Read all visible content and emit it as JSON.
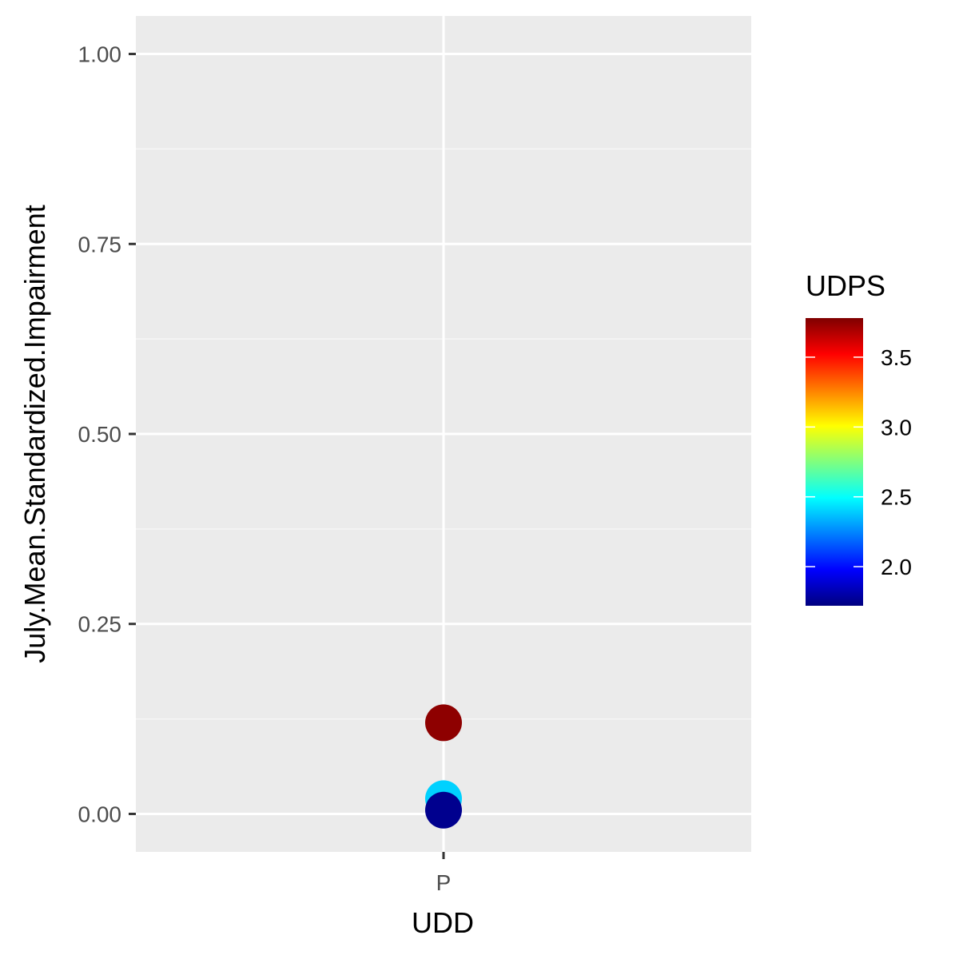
{
  "chart_data": {
    "type": "scatter",
    "title": "",
    "xlabel": "UDD",
    "ylabel": "July.Mean.Standardized.Impairment",
    "categories": [
      "P"
    ],
    "ylim": [
      -0.05,
      1.05
    ],
    "yticks": [
      {
        "value": 0.0,
        "label": "0.00"
      },
      {
        "value": 0.25,
        "label": "0.25"
      },
      {
        "value": 0.5,
        "label": "0.50"
      },
      {
        "value": 0.75,
        "label": "0.75"
      },
      {
        "value": 1.0,
        "label": "1.00"
      }
    ],
    "points": [
      {
        "x": "P",
        "y": 0.12,
        "color_value": 3.75
      },
      {
        "x": "P",
        "y": 0.02,
        "color_value": 2.4
      },
      {
        "x": "P",
        "y": 0.005,
        "color_value": 1.75
      }
    ],
    "grid": true,
    "legend": {
      "title": "UDPS",
      "position": "right",
      "type": "colorbar",
      "range": [
        1.72,
        3.78
      ],
      "breaks": [
        {
          "value": 2.0,
          "label": "2.0"
        },
        {
          "value": 2.5,
          "label": "2.5"
        },
        {
          "value": 3.0,
          "label": "3.0"
        },
        {
          "value": 3.5,
          "label": "3.5"
        }
      ],
      "colors": [
        "#00007F",
        "#0000FF",
        "#007FFF",
        "#00FFFF",
        "#7FFF7F",
        "#FFFF00",
        "#FF7F00",
        "#FF0000",
        "#7F0000"
      ]
    },
    "colors": {
      "panel_background": "#EBEBEB",
      "grid_major": "#FFFFFF",
      "grid_minor": "#F6F6F6"
    }
  }
}
